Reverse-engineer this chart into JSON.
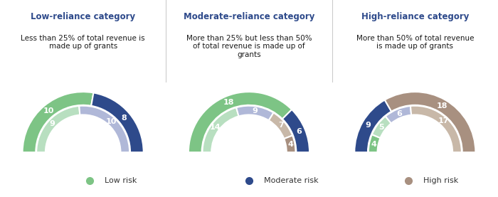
{
  "titles": [
    "Low-reliance category",
    "Moderate-reliance category",
    "High-reliance category"
  ],
  "subtitles": [
    "Less than 25% of total revenue is\nmade up of grants",
    "More than 25% but less than 50%\nof total revenue is made up of\ngrants",
    "More than 50% of total revenue\nis made up of grants"
  ],
  "title_color": "#2E4A8B",
  "subtitle_color": "#1a1a1a",
  "header_bg": "#E8E8E8",
  "fig_bg": "#FFFFFF",
  "charts": [
    {
      "outer": [
        {
          "value": 10,
          "color": "#7DC485",
          "label": "10"
        },
        {
          "value": 8,
          "color": "#2E4A8B",
          "label": "8"
        }
      ],
      "inner": [
        {
          "value": 9,
          "color": "#B8DFC0",
          "label": "9"
        },
        {
          "value": 10,
          "color": "#B0B8D8",
          "label": "10"
        }
      ]
    },
    {
      "outer": [
        {
          "value": 18,
          "color": "#7DC485",
          "label": "18"
        },
        {
          "value": 6,
          "color": "#2E4A8B",
          "label": "6"
        }
      ],
      "inner": [
        {
          "value": 14,
          "color": "#B8DFC0",
          "label": "14"
        },
        {
          "value": 9,
          "color": "#B0B8D8",
          "label": "9"
        },
        {
          "value": 7,
          "color": "#C8B8A8",
          "label": "7"
        },
        {
          "value": 4,
          "color": "#A89080",
          "label": "4"
        }
      ]
    },
    {
      "outer": [
        {
          "value": 9,
          "color": "#2E4A8B",
          "label": "9"
        },
        {
          "value": 18,
          "color": "#A89080",
          "label": "18"
        }
      ],
      "inner": [
        {
          "value": 4,
          "color": "#7DC485",
          "label": "4"
        },
        {
          "value": 5,
          "color": "#B8DFC0",
          "label": "5"
        },
        {
          "value": 6,
          "color": "#B0B8D8",
          "label": "6"
        },
        {
          "value": 17,
          "color": "#C8B8A8",
          "label": "17"
        }
      ]
    }
  ],
  "legend": [
    {
      "label": "Low risk",
      "color": "#7DC485"
    },
    {
      "label": "Moderate risk",
      "color": "#2E4A8B"
    },
    {
      "label": "High risk",
      "color": "#A89080"
    }
  ]
}
